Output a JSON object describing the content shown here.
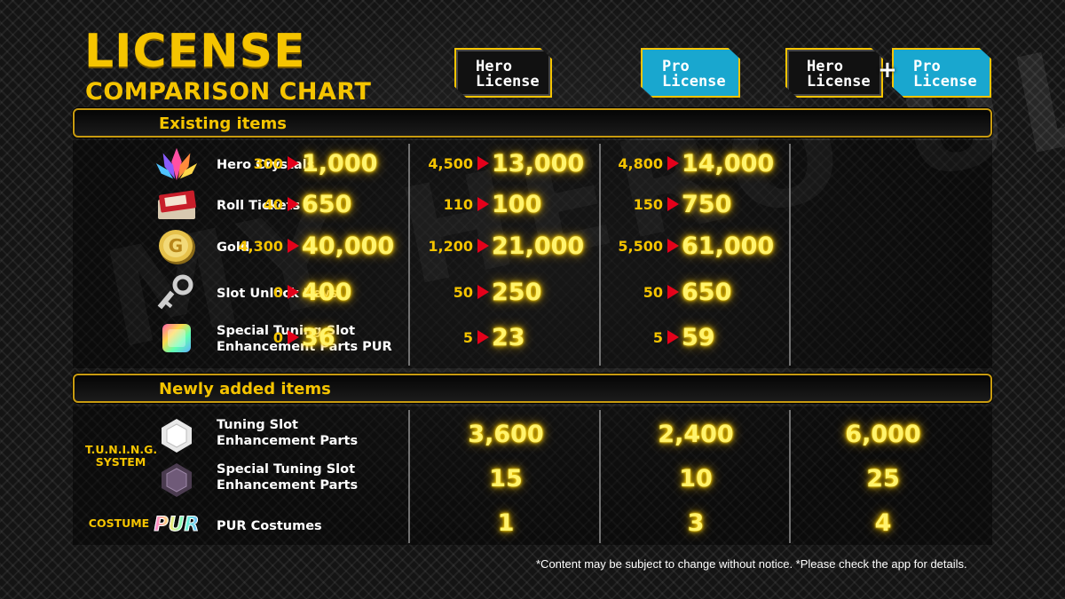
{
  "title": {
    "main": "LICENSE",
    "sub": "COMPARISON CHART"
  },
  "watermark": "MY HERO ULTRA RUMBLE",
  "licenses": {
    "hero": "Hero\nLicense",
    "pro": "Pro\nLicense",
    "combo_hero": "Hero\nLicense",
    "combo_plus": "+",
    "combo_pro": "Pro\nLicense"
  },
  "colors": {
    "accent": "#f5c400",
    "pro_badge": "#19a7cf",
    "arrow": "#e3001b",
    "glow": "#fff36b"
  },
  "sections": {
    "existing": "Existing items",
    "new": "Newly added items"
  },
  "existing_items": [
    {
      "icon": "hero-crystals-icon",
      "label": "Hero Crystals",
      "hero": {
        "from": "300",
        "to": "1,000"
      },
      "pro": {
        "from": "4,500",
        "to": "13,000"
      },
      "combo": {
        "from": "4,800",
        "to": "14,000"
      }
    },
    {
      "icon": "roll-tickets-icon",
      "label": "Roll Tickets",
      "hero": {
        "from": "40",
        "to": "650"
      },
      "pro": {
        "from": "110",
        "to": "100"
      },
      "combo": {
        "from": "150",
        "to": "750"
      }
    },
    {
      "icon": "gold-coin-icon",
      "label": "Gold",
      "hero": {
        "from": "4,300",
        "to": "40,000"
      },
      "pro": {
        "from": "1,200",
        "to": "21,000"
      },
      "combo": {
        "from": "5,500",
        "to": "61,000"
      }
    },
    {
      "icon": "slot-unlock-key-icon",
      "label": "Slot Unlock Keys",
      "hero": {
        "from": "0",
        "to": "400"
      },
      "pro": {
        "from": "50",
        "to": "250"
      },
      "combo": {
        "from": "50",
        "to": "650"
      }
    },
    {
      "icon": "special-tuning-parts-pur-icon",
      "label": "Special Tuning Slot\nEnhancement Parts PUR",
      "hero": {
        "from": "0",
        "to": "36"
      },
      "pro": {
        "from": "5",
        "to": "23"
      },
      "combo": {
        "from": "5",
        "to": "59"
      }
    }
  ],
  "new_categories": {
    "tuning": "T.U.N.I.N.G.\nSYSTEM",
    "costume": "COSTUME"
  },
  "new_items": [
    {
      "icon": "tuning-parts-icon",
      "label": "Tuning Slot\nEnhancement Parts",
      "hero": "3,600",
      "pro": "2,400",
      "combo": "6,000"
    },
    {
      "icon": "special-tuning-parts-icon",
      "label": "Special Tuning Slot\nEnhancement Parts",
      "hero": "15",
      "pro": "10",
      "combo": "25"
    },
    {
      "icon": "pur-costume-icon",
      "icon_text": "PUR",
      "label": "PUR Costumes",
      "hero": "1",
      "pro": "3",
      "combo": "4"
    }
  ],
  "footnote": "*Content may be subject to change without notice. *Please check the app for details."
}
